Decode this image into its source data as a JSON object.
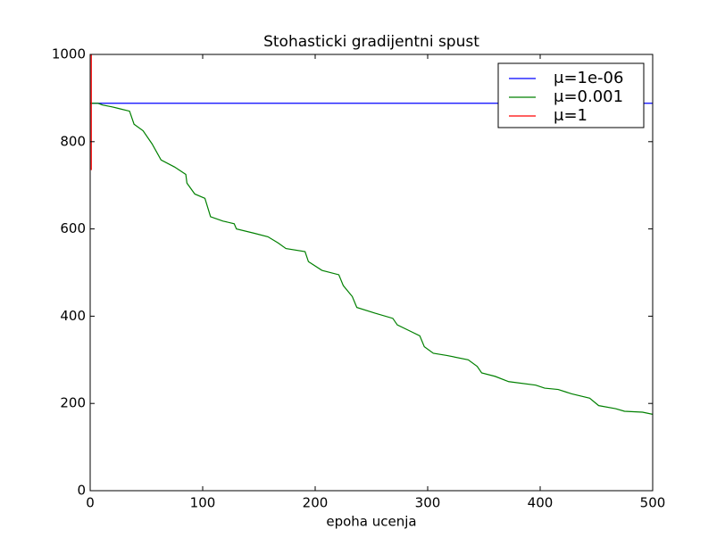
{
  "chart_data": {
    "type": "line",
    "title": "Stohasticki gradijentni spust",
    "x_label": "epoha ucenja",
    "xlim": [
      0,
      500
    ],
    "ylim": [
      0,
      1000
    ],
    "xticks": [
      0,
      100,
      200,
      300,
      400,
      500
    ],
    "yticks": [
      0,
      200,
      400,
      600,
      800,
      1000
    ],
    "legend": "upper right",
    "series": [
      {
        "name": "μ=1e-06",
        "color": "#0000ff",
        "x": [
          0,
          500
        ],
        "values": [
          888,
          888
        ]
      },
      {
        "name": "μ=0.001",
        "color": "#008000",
        "x": [
          0,
          7,
          11,
          19,
          27,
          35,
          39,
          47,
          55,
          63,
          75,
          85,
          86,
          93,
          102,
          107,
          118,
          128,
          130,
          146,
          158,
          167,
          174,
          191,
          194,
          206,
          221,
          225,
          233,
          237,
          253,
          269,
          273,
          285,
          293,
          297,
          305,
          317,
          336,
          344,
          348,
          360,
          372,
          396,
          404,
          416,
          428,
          444,
          452,
          467,
          475,
          491,
          500
        ],
        "values": [
          888,
          888,
          884,
          880,
          875,
          870,
          840,
          825,
          795,
          758,
          742,
          725,
          705,
          680,
          670,
          628,
          618,
          612,
          600,
          590,
          582,
          568,
          555,
          548,
          525,
          505,
          495,
          470,
          445,
          420,
          407,
          395,
          380,
          365,
          355,
          330,
          315,
          310,
          300,
          285,
          270,
          262,
          250,
          242,
          235,
          232,
          222,
          212,
          195,
          188,
          182,
          180,
          175
        ]
      },
      {
        "name": "μ=1",
        "color": "#ff0000",
        "x": [
          1,
          1
        ],
        "values": [
          735,
          1000
        ]
      }
    ]
  }
}
